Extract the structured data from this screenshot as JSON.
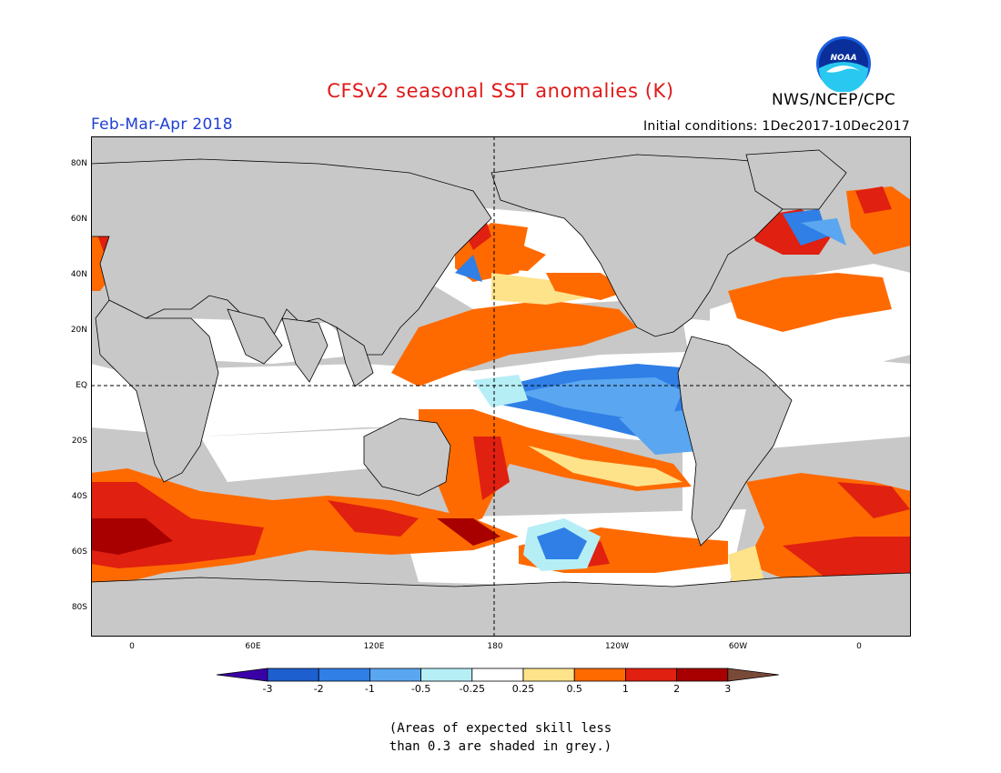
{
  "title": "CFSv2 seasonal SST anomalies (K)",
  "organization": "NWS/NCEP/CPC",
  "logo_text": "NOAA",
  "season": "Feb-Mar-Apr 2018",
  "initial_conditions": "Initial conditions: 1Dec2017-10Dec2017",
  "lat_labels": [
    "80N",
    "60N",
    "40N",
    "20N",
    "EQ",
    "20S",
    "40S",
    "60S",
    "80S"
  ],
  "lon_labels": [
    "0",
    "60E",
    "120E",
    "180",
    "120W",
    "60W",
    "0"
  ],
  "colorbar": {
    "ticks": [
      "-3",
      "-2",
      "-1",
      "-0.5",
      "-0.25",
      "0.25",
      "0.5",
      "1",
      "2",
      "3"
    ],
    "colors": [
      "#3a00a8",
      "#1e5fd0",
      "#2f7fe6",
      "#5aa6f0",
      "#b6eef6",
      "#ffffff",
      "#ffe38a",
      "#ff6a00",
      "#e02010",
      "#a80000",
      "#7a4a38"
    ]
  },
  "note_lines": [
    "(Areas of expected skill less",
    "than 0.3 are shaded in grey.)"
  ],
  "colors": {
    "ocean_no_skill": "#c8c8c8",
    "neutral": "#ffffff",
    "title": "#e01818",
    "season": "#1e3fd6"
  }
}
